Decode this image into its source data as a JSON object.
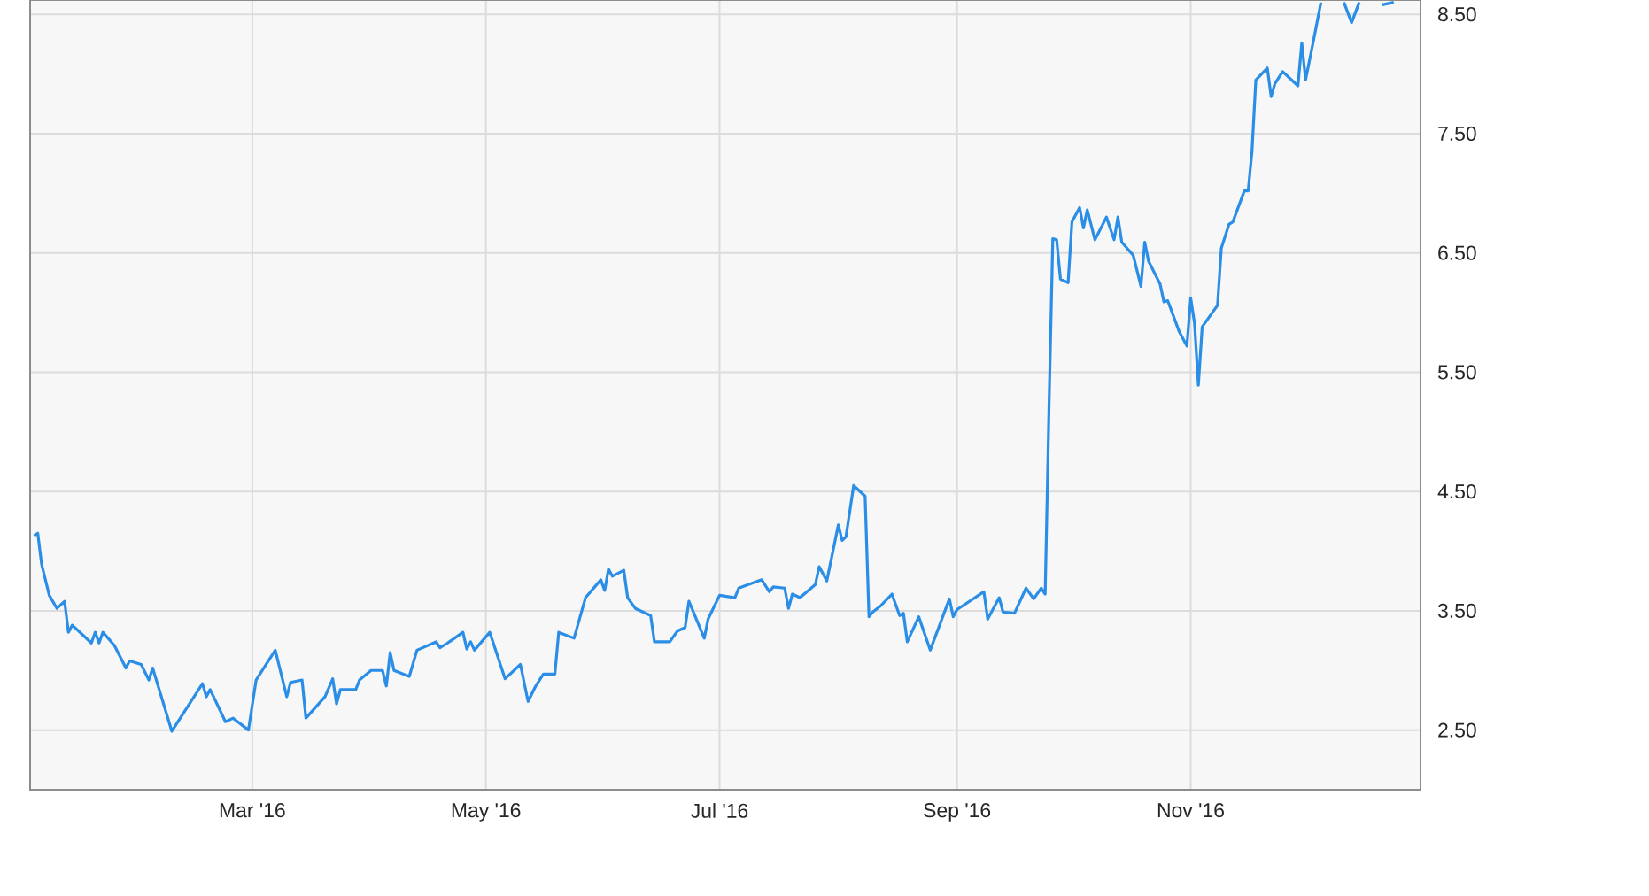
{
  "chart_data": {
    "type": "line",
    "color": "#2a8de6",
    "grid": true,
    "xlim": [
      "2016-01-03",
      "2016-12-31"
    ],
    "ylim": [
      2.0,
      8.62
    ],
    "xticks": [
      {
        "value": "2016-03-01",
        "label": "Mar '16"
      },
      {
        "value": "2016-05-01",
        "label": "May '16"
      },
      {
        "value": "2016-07-01",
        "label": "Jul '16"
      },
      {
        "value": "2016-09-01",
        "label": "Sep '16"
      },
      {
        "value": "2016-11-01",
        "label": "Nov '16"
      }
    ],
    "yticks": [
      {
        "value": 2.5,
        "label": "2.50"
      },
      {
        "value": 3.5,
        "label": "3.50"
      },
      {
        "value": 4.5,
        "label": "4.50"
      },
      {
        "value": 5.5,
        "label": "5.50"
      },
      {
        "value": 6.5,
        "label": "6.50"
      },
      {
        "value": 7.5,
        "label": "7.50"
      },
      {
        "value": 8.5,
        "label": "8.50"
      }
    ],
    "x": [
      "2016-01-04",
      "2016-01-05",
      "2016-01-06",
      "2016-01-08",
      "2016-01-10",
      "2016-01-12",
      "2016-01-13",
      "2016-01-14",
      "2016-01-19",
      "2016-01-20",
      "2016-01-21",
      "2016-01-22",
      "2016-01-25",
      "2016-01-28",
      "2016-01-29",
      "2016-02-01",
      "2016-02-03",
      "2016-02-04",
      "2016-02-09",
      "2016-02-17",
      "2016-02-18",
      "2016-02-19",
      "2016-02-23",
      "2016-02-25",
      "2016-02-29",
      "2016-03-02",
      "2016-03-07",
      "2016-03-10",
      "2016-03-11",
      "2016-03-14",
      "2016-03-15",
      "2016-03-20",
      "2016-03-22",
      "2016-03-23",
      "2016-03-24",
      "2016-03-28",
      "2016-03-29",
      "2016-04-01",
      "2016-04-04",
      "2016-04-05",
      "2016-04-06",
      "2016-04-07",
      "2016-04-11",
      "2016-04-13",
      "2016-04-18",
      "2016-04-19",
      "2016-04-21",
      "2016-04-25",
      "2016-04-26",
      "2016-04-27",
      "2016-04-28",
      "2016-05-02",
      "2016-05-06",
      "2016-05-10",
      "2016-05-12",
      "2016-05-14",
      "2016-05-16",
      "2016-05-19",
      "2016-05-20",
      "2016-05-24",
      "2016-05-27",
      "2016-05-31",
      "2016-06-01",
      "2016-06-02",
      "2016-06-03",
      "2016-06-06",
      "2016-06-07",
      "2016-06-09",
      "2016-06-13",
      "2016-06-14",
      "2016-06-18",
      "2016-06-20",
      "2016-06-22",
      "2016-06-23",
      "2016-06-27",
      "2016-06-28",
      "2016-07-01",
      "2016-07-05",
      "2016-07-06",
      "2016-07-12",
      "2016-07-14",
      "2016-07-15",
      "2016-07-18",
      "2016-07-19",
      "2016-07-20",
      "2016-07-22",
      "2016-07-26",
      "2016-07-27",
      "2016-07-29",
      "2016-08-01",
      "2016-08-02",
      "2016-08-03",
      "2016-08-05",
      "2016-08-08",
      "2016-08-09",
      "2016-08-10",
      "2016-08-12",
      "2016-08-15",
      "2016-08-17",
      "2016-08-18",
      "2016-08-19",
      "2016-08-22",
      "2016-08-25",
      "2016-08-30",
      "2016-08-31",
      "2016-09-01",
      "2016-09-08",
      "2016-09-09",
      "2016-09-12",
      "2016-09-13",
      "2016-09-16",
      "2016-09-19",
      "2016-09-21",
      "2016-09-23",
      "2016-09-24",
      "2016-09-25",
      "2016-09-26",
      "2016-09-27",
      "2016-09-28",
      "2016-09-30",
      "2016-10-01",
      "2016-10-03",
      "2016-10-04",
      "2016-10-05",
      "2016-10-07",
      "2016-10-10",
      "2016-10-12",
      "2016-10-13",
      "2016-10-14",
      "2016-10-17",
      "2016-10-19",
      "2016-10-20",
      "2016-10-21",
      "2016-10-24",
      "2016-10-25",
      "2016-10-26",
      "2016-10-29",
      "2016-10-31",
      "2016-11-01",
      "2016-11-02",
      "2016-11-03",
      "2016-11-04",
      "2016-11-08",
      "2016-11-09",
      "2016-11-11",
      "2016-11-12",
      "2016-11-15",
      "2016-11-16",
      "2016-11-17",
      "2016-11-18",
      "2016-11-21",
      "2016-11-22",
      "2016-11-23",
      "2016-11-25",
      "2016-11-29",
      "2016-11-30",
      "2016-12-01",
      "2016-12-03",
      "2016-12-05",
      "2016-12-08",
      "2016-12-11",
      "2016-12-13",
      "2016-12-15",
      "2016-12-17",
      "2016-12-21",
      "2016-12-24"
    ],
    "values": [
      4.13,
      4.15,
      3.89,
      3.63,
      3.52,
      3.58,
      3.32,
      3.38,
      3.23,
      3.32,
      3.23,
      3.32,
      3.21,
      3.02,
      3.08,
      3.05,
      2.92,
      3.02,
      2.49,
      2.89,
      2.78,
      2.84,
      2.57,
      2.6,
      2.5,
      2.92,
      3.17,
      2.78,
      2.9,
      2.92,
      2.6,
      2.78,
      2.93,
      2.72,
      2.84,
      2.84,
      2.92,
      3.0,
      3.0,
      2.87,
      3.15,
      3.0,
      2.95,
      3.17,
      3.24,
      3.19,
      3.23,
      3.32,
      3.18,
      3.24,
      3.17,
      3.32,
      2.93,
      3.05,
      2.74,
      2.87,
      2.97,
      2.97,
      3.32,
      3.27,
      3.61,
      3.76,
      3.67,
      3.85,
      3.79,
      3.84,
      3.61,
      3.52,
      3.46,
      3.24,
      3.24,
      3.33,
      3.36,
      3.58,
      3.27,
      3.43,
      3.63,
      3.61,
      3.69,
      3.76,
      3.66,
      3.7,
      3.69,
      3.52,
      3.64,
      3.61,
      3.72,
      3.87,
      3.75,
      4.22,
      4.09,
      4.12,
      4.55,
      4.46,
      3.45,
      3.49,
      3.54,
      3.64,
      3.46,
      3.48,
      3.24,
      3.45,
      3.17,
      3.6,
      3.45,
      3.51,
      3.66,
      3.43,
      3.61,
      3.49,
      3.48,
      3.69,
      3.6,
      3.69,
      3.64,
      5.2,
      6.62,
      6.61,
      6.28,
      6.25,
      6.76,
      6.88,
      6.71,
      6.86,
      6.61,
      6.8,
      6.61,
      6.8,
      6.59,
      6.48,
      6.22,
      6.59,
      6.43,
      6.24,
      6.09,
      6.1,
      5.84,
      5.72,
      6.12,
      5.91,
      5.39,
      5.88,
      6.06,
      6.54,
      6.74,
      6.76,
      7.02,
      7.02,
      7.35,
      7.95,
      8.05,
      7.81,
      7.92,
      8.02,
      7.9,
      8.26,
      7.95,
      8.27,
      8.6,
      null,
      8.6,
      8.43,
      8.6,
      null,
      8.58,
      8.6
    ]
  }
}
